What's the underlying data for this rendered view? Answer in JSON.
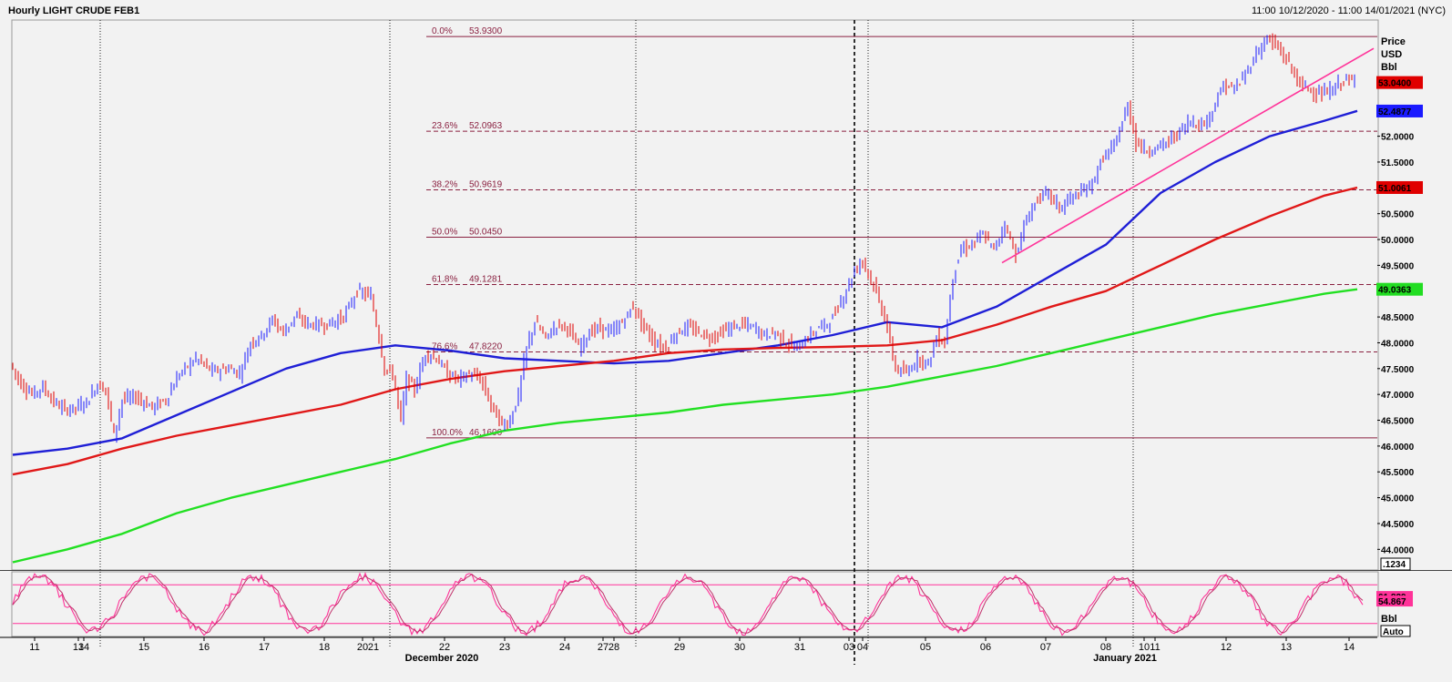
{
  "header": {
    "title": "Hourly LIGHT CRUDE FEB1",
    "date_range": "11:00 10/12/2020 - 11:00 14/01/2021 (NYC)"
  },
  "price_scale": {
    "label_line1": "Price",
    "label_line2": "USD",
    "label_line3": "Bbl",
    "box_label": ".1234"
  },
  "oscillator_scale": {
    "unit": "Bbl",
    "mode_box": "Auto"
  },
  "x_axis": {
    "month_left": "December 2020",
    "month_right": "January 2021"
  },
  "colors": {
    "background": "#f2f2f2",
    "candle_up": "#1a1aff",
    "candle_down": "#e00000",
    "ma_blue": "#1f1fd6",
    "ma_red": "#e01818",
    "ma_green": "#22e022",
    "fib_line": "#8a2040",
    "trendline": "#ff3399",
    "stoch": "#ff3399"
  },
  "chart_data": [
    {
      "type": "candlestick",
      "title": "Hourly LIGHT CRUDE FEB1",
      "ylabel": "Price USD Bbl",
      "ylim": [
        43.6,
        54.25
      ],
      "y_ticks": [
        "44.0000",
        "44.5000",
        "45.0000",
        "45.5000",
        "46.0000",
        "46.5000",
        "47.0000",
        "47.5000",
        "48.0000",
        "48.5000",
        "49.0000",
        "49.5000",
        "50.0000",
        "50.5000",
        "51.0000",
        "51.5000",
        "52.0000",
        "52.5000",
        "53.0000"
      ],
      "x_ticks": [
        {
          "label": "11",
          "x": 0.4
        },
        {
          "label": "13",
          "x": 1.2
        },
        {
          "label": "14",
          "x": 1.3
        },
        {
          "label": "15",
          "x": 2.4
        },
        {
          "label": "16",
          "x": 3.5
        },
        {
          "label": "17",
          "x": 4.6
        },
        {
          "label": "18",
          "x": 5.7
        },
        {
          "label": "20",
          "x": 6.4
        },
        {
          "label": "21",
          "x": 6.6
        },
        {
          "label": "22",
          "x": 7.9
        },
        {
          "label": "23",
          "x": 9.0
        },
        {
          "label": "24",
          "x": 10.1
        },
        {
          "label": "27",
          "x": 10.8
        },
        {
          "label": "28",
          "x": 11.0
        },
        {
          "label": "29",
          "x": 12.2
        },
        {
          "label": "30",
          "x": 13.3
        },
        {
          "label": "31",
          "x": 14.4
        },
        {
          "label": "03",
          "x": 15.3
        },
        {
          "label": "04",
          "x": 15.55
        },
        {
          "label": "05",
          "x": 16.7
        },
        {
          "label": "06",
          "x": 17.8
        },
        {
          "label": "07",
          "x": 18.9
        },
        {
          "label": "08",
          "x": 20.0
        },
        {
          "label": "10",
          "x": 20.7
        },
        {
          "label": "11",
          "x": 20.9
        },
        {
          "label": "12",
          "x": 22.2
        },
        {
          "label": "13",
          "x": 23.3
        },
        {
          "label": "14",
          "x": 24.45
        }
      ],
      "fibonacci": {
        "levels": [
          {
            "label": "0.0%",
            "price": "53.9300",
            "value": 53.93
          },
          {
            "label": "23.6%",
            "price": "52.0963",
            "value": 52.0963
          },
          {
            "label": "38.2%",
            "price": "50.9619",
            "value": 50.9619
          },
          {
            "label": "50.0%",
            "price": "50.0450",
            "value": 50.045
          },
          {
            "label": "61.8%",
            "price": "49.1281",
            "value": 49.1281
          },
          {
            "label": "76.6%",
            "price": "47.8220",
            "value": 47.822
          },
          {
            "label": "100.0%",
            "price": "46.1600",
            "value": 46.16
          }
        ]
      },
      "price_path": [
        [
          0.0,
          47.6
        ],
        [
          0.2,
          47.2
        ],
        [
          0.4,
          47.0
        ],
        [
          0.6,
          47.15
        ],
        [
          0.8,
          46.85
        ],
        [
          1.0,
          46.7
        ],
        [
          1.2,
          46.75
        ],
        [
          1.4,
          46.85
        ],
        [
          1.6,
          47.2
        ],
        [
          1.75,
          47.1
        ],
        [
          1.9,
          46.2
        ],
        [
          2.05,
          46.9
        ],
        [
          2.3,
          46.95
        ],
        [
          2.6,
          46.75
        ],
        [
          2.85,
          46.9
        ],
        [
          3.1,
          47.4
        ],
        [
          3.4,
          47.7
        ],
        [
          3.7,
          47.45
        ],
        [
          4.0,
          47.5
        ],
        [
          4.2,
          47.4
        ],
        [
          4.4,
          48.0
        ],
        [
          4.6,
          48.15
        ],
        [
          4.8,
          48.45
        ],
        [
          5.0,
          48.2
        ],
        [
          5.2,
          48.5
        ],
        [
          5.5,
          48.35
        ],
        [
          5.8,
          48.35
        ],
        [
          6.1,
          48.5
        ],
        [
          6.35,
          49.0
        ],
        [
          6.6,
          48.9
        ],
        [
          6.75,
          48.1
        ],
        [
          6.85,
          47.5
        ],
        [
          7.0,
          47.4
        ],
        [
          7.15,
          46.5
        ],
        [
          7.25,
          47.3
        ],
        [
          7.4,
          47.1
        ],
        [
          7.6,
          47.8
        ],
        [
          7.8,
          47.7
        ],
        [
          8.0,
          47.4
        ],
        [
          8.2,
          47.3
        ],
        [
          8.4,
          47.4
        ],
        [
          8.6,
          47.3
        ],
        [
          8.8,
          46.8
        ],
        [
          9.0,
          46.4
        ],
        [
          9.15,
          46.5
        ],
        [
          9.3,
          47.0
        ],
        [
          9.45,
          47.9
        ],
        [
          9.6,
          48.4
        ],
        [
          9.8,
          48.1
        ],
        [
          10.0,
          48.35
        ],
        [
          10.2,
          48.3
        ],
        [
          10.4,
          47.9
        ],
        [
          10.6,
          48.2
        ],
        [
          10.8,
          48.3
        ],
        [
          11.0,
          48.2
        ],
        [
          11.2,
          48.4
        ],
        [
          11.4,
          48.7
        ],
        [
          11.6,
          48.3
        ],
        [
          11.8,
          48.0
        ],
        [
          12.0,
          47.9
        ],
        [
          12.2,
          48.2
        ],
        [
          12.4,
          48.3
        ],
        [
          12.6,
          48.2
        ],
        [
          12.8,
          48.1
        ],
        [
          13.0,
          48.2
        ],
        [
          13.2,
          48.3
        ],
        [
          13.4,
          48.35
        ],
        [
          13.6,
          48.3
        ],
        [
          13.8,
          48.15
        ],
        [
          14.0,
          48.2
        ],
        [
          14.2,
          48.0
        ],
        [
          14.4,
          47.9
        ],
        [
          14.6,
          48.1
        ],
        [
          14.8,
          48.3
        ],
        [
          15.0,
          48.4
        ],
        [
          15.2,
          48.8
        ],
        [
          15.45,
          49.4
        ],
        [
          15.6,
          49.6
        ],
        [
          15.8,
          49.1
        ],
        [
          16.0,
          48.5
        ],
        [
          16.2,
          47.5
        ],
        [
          16.4,
          47.4
        ],
        [
          16.6,
          47.7
        ],
        [
          16.8,
          47.6
        ],
        [
          16.95,
          48.1
        ],
        [
          17.1,
          48.0
        ],
        [
          17.25,
          49.3
        ],
        [
          17.4,
          49.8
        ],
        [
          17.6,
          49.9
        ],
        [
          17.8,
          50.1
        ],
        [
          18.0,
          49.8
        ],
        [
          18.2,
          50.3
        ],
        [
          18.4,
          49.7
        ],
        [
          18.6,
          50.4
        ],
        [
          18.8,
          50.8
        ],
        [
          19.0,
          50.9
        ],
        [
          19.2,
          50.6
        ],
        [
          19.4,
          50.8
        ],
        [
          19.6,
          50.9
        ],
        [
          19.8,
          51.1
        ],
        [
          20.0,
          51.6
        ],
        [
          20.2,
          51.8
        ],
        [
          20.45,
          52.6
        ],
        [
          20.6,
          51.9
        ],
        [
          20.8,
          51.7
        ],
        [
          21.0,
          51.8
        ],
        [
          21.2,
          51.9
        ],
        [
          21.4,
          52.1
        ],
        [
          21.6,
          52.3
        ],
        [
          21.8,
          52.2
        ],
        [
          22.0,
          52.5
        ],
        [
          22.2,
          53.0
        ],
        [
          22.4,
          52.9
        ],
        [
          22.6,
          53.2
        ],
        [
          22.8,
          53.6
        ],
        [
          23.0,
          53.9
        ],
        [
          23.2,
          53.7
        ],
        [
          23.4,
          53.4
        ],
        [
          23.6,
          53.0
        ],
        [
          23.8,
          52.9
        ],
        [
          24.0,
          52.8
        ],
        [
          24.2,
          52.9
        ],
        [
          24.4,
          53.1
        ],
        [
          24.6,
          53.04
        ]
      ],
      "moving_averages": [
        {
          "points": [
            [
              0.0,
              45.83
            ],
            [
              1.0,
              45.95
            ],
            [
              2.0,
              46.15
            ],
            [
              3.0,
              46.6
            ],
            [
              4.0,
              47.05
            ],
            [
              5.0,
              47.5
            ],
            [
              6.0,
              47.8
            ],
            [
              7.0,
              47.95
            ],
            [
              8.0,
              47.85
            ],
            [
              9.0,
              47.7
            ],
            [
              10.0,
              47.65
            ],
            [
              11.0,
              47.6
            ],
            [
              12.0,
              47.65
            ],
            [
              13.0,
              47.8
            ],
            [
              14.0,
              47.95
            ],
            [
              15.0,
              48.15
            ],
            [
              16.0,
              48.4
            ],
            [
              17.0,
              48.3
            ],
            [
              18.0,
              48.7
            ],
            [
              19.0,
              49.3
            ],
            [
              20.0,
              49.9
            ],
            [
              21.0,
              50.9
            ],
            [
              22.0,
              51.5
            ],
            [
              23.0,
              52.0
            ],
            [
              24.0,
              52.3
            ],
            [
              24.6,
              52.49
            ]
          ]
        },
        {
          "points": [
            [
              0.0,
              45.45
            ],
            [
              1.0,
              45.65
            ],
            [
              2.0,
              45.95
            ],
            [
              3.0,
              46.2
            ],
            [
              4.0,
              46.4
            ],
            [
              5.0,
              46.6
            ],
            [
              6.0,
              46.8
            ],
            [
              7.0,
              47.1
            ],
            [
              8.0,
              47.3
            ],
            [
              9.0,
              47.45
            ],
            [
              10.0,
              47.55
            ],
            [
              11.0,
              47.65
            ],
            [
              12.0,
              47.8
            ],
            [
              13.0,
              47.87
            ],
            [
              14.0,
              47.9
            ],
            [
              15.0,
              47.92
            ],
            [
              16.0,
              47.95
            ],
            [
              17.0,
              48.05
            ],
            [
              18.0,
              48.35
            ],
            [
              19.0,
              48.7
            ],
            [
              20.0,
              49.0
            ],
            [
              21.0,
              49.5
            ],
            [
              22.0,
              50.0
            ],
            [
              23.0,
              50.45
            ],
            [
              24.0,
              50.85
            ],
            [
              24.6,
              51.0061
            ]
          ]
        },
        {
          "points": [
            [
              0.0,
              43.75
            ],
            [
              1.0,
              44.0
            ],
            [
              2.0,
              44.3
            ],
            [
              3.0,
              44.7
            ],
            [
              4.0,
              45.0
            ],
            [
              5.0,
              45.25
            ],
            [
              6.0,
              45.5
            ],
            [
              7.0,
              45.75
            ],
            [
              8.0,
              46.05
            ],
            [
              9.0,
              46.3
            ],
            [
              10.0,
              46.45
            ],
            [
              11.0,
              46.55
            ],
            [
              12.0,
              46.65
            ],
            [
              13.0,
              46.8
            ],
            [
              14.0,
              46.9
            ],
            [
              15.0,
              47.0
            ],
            [
              16.0,
              47.15
            ],
            [
              17.0,
              47.35
            ],
            [
              18.0,
              47.55
            ],
            [
              19.0,
              47.8
            ],
            [
              20.0,
              48.05
            ],
            [
              21.0,
              48.3
            ],
            [
              22.0,
              48.55
            ],
            [
              23.0,
              48.75
            ],
            [
              24.0,
              48.95
            ],
            [
              24.6,
              49.0363
            ]
          ]
        }
      ],
      "trendline": {
        "from": [
          18.1,
          49.55
        ],
        "to": [
          24.9,
          53.7
        ]
      },
      "current_labels": [
        {
          "price": "53.0400",
          "value": 53.04,
          "color": "#e00000"
        },
        {
          "price": "52.4877",
          "value": 52.4877,
          "color": "#1a1aff"
        },
        {
          "price": "51.0061",
          "value": 51.0061,
          "color": "#e00000"
        },
        {
          "price": "49.0363",
          "value": 49.0363,
          "color": "#22dd22"
        }
      ]
    },
    {
      "type": "line",
      "ylim": [
        0,
        100
      ],
      "upper_band": 80,
      "lower_band": 20,
      "current_labels": [
        {
          "value_text": "61.829",
          "value": 61.829
        },
        {
          "value_text": "54.867",
          "value": 54.867
        }
      ]
    }
  ]
}
